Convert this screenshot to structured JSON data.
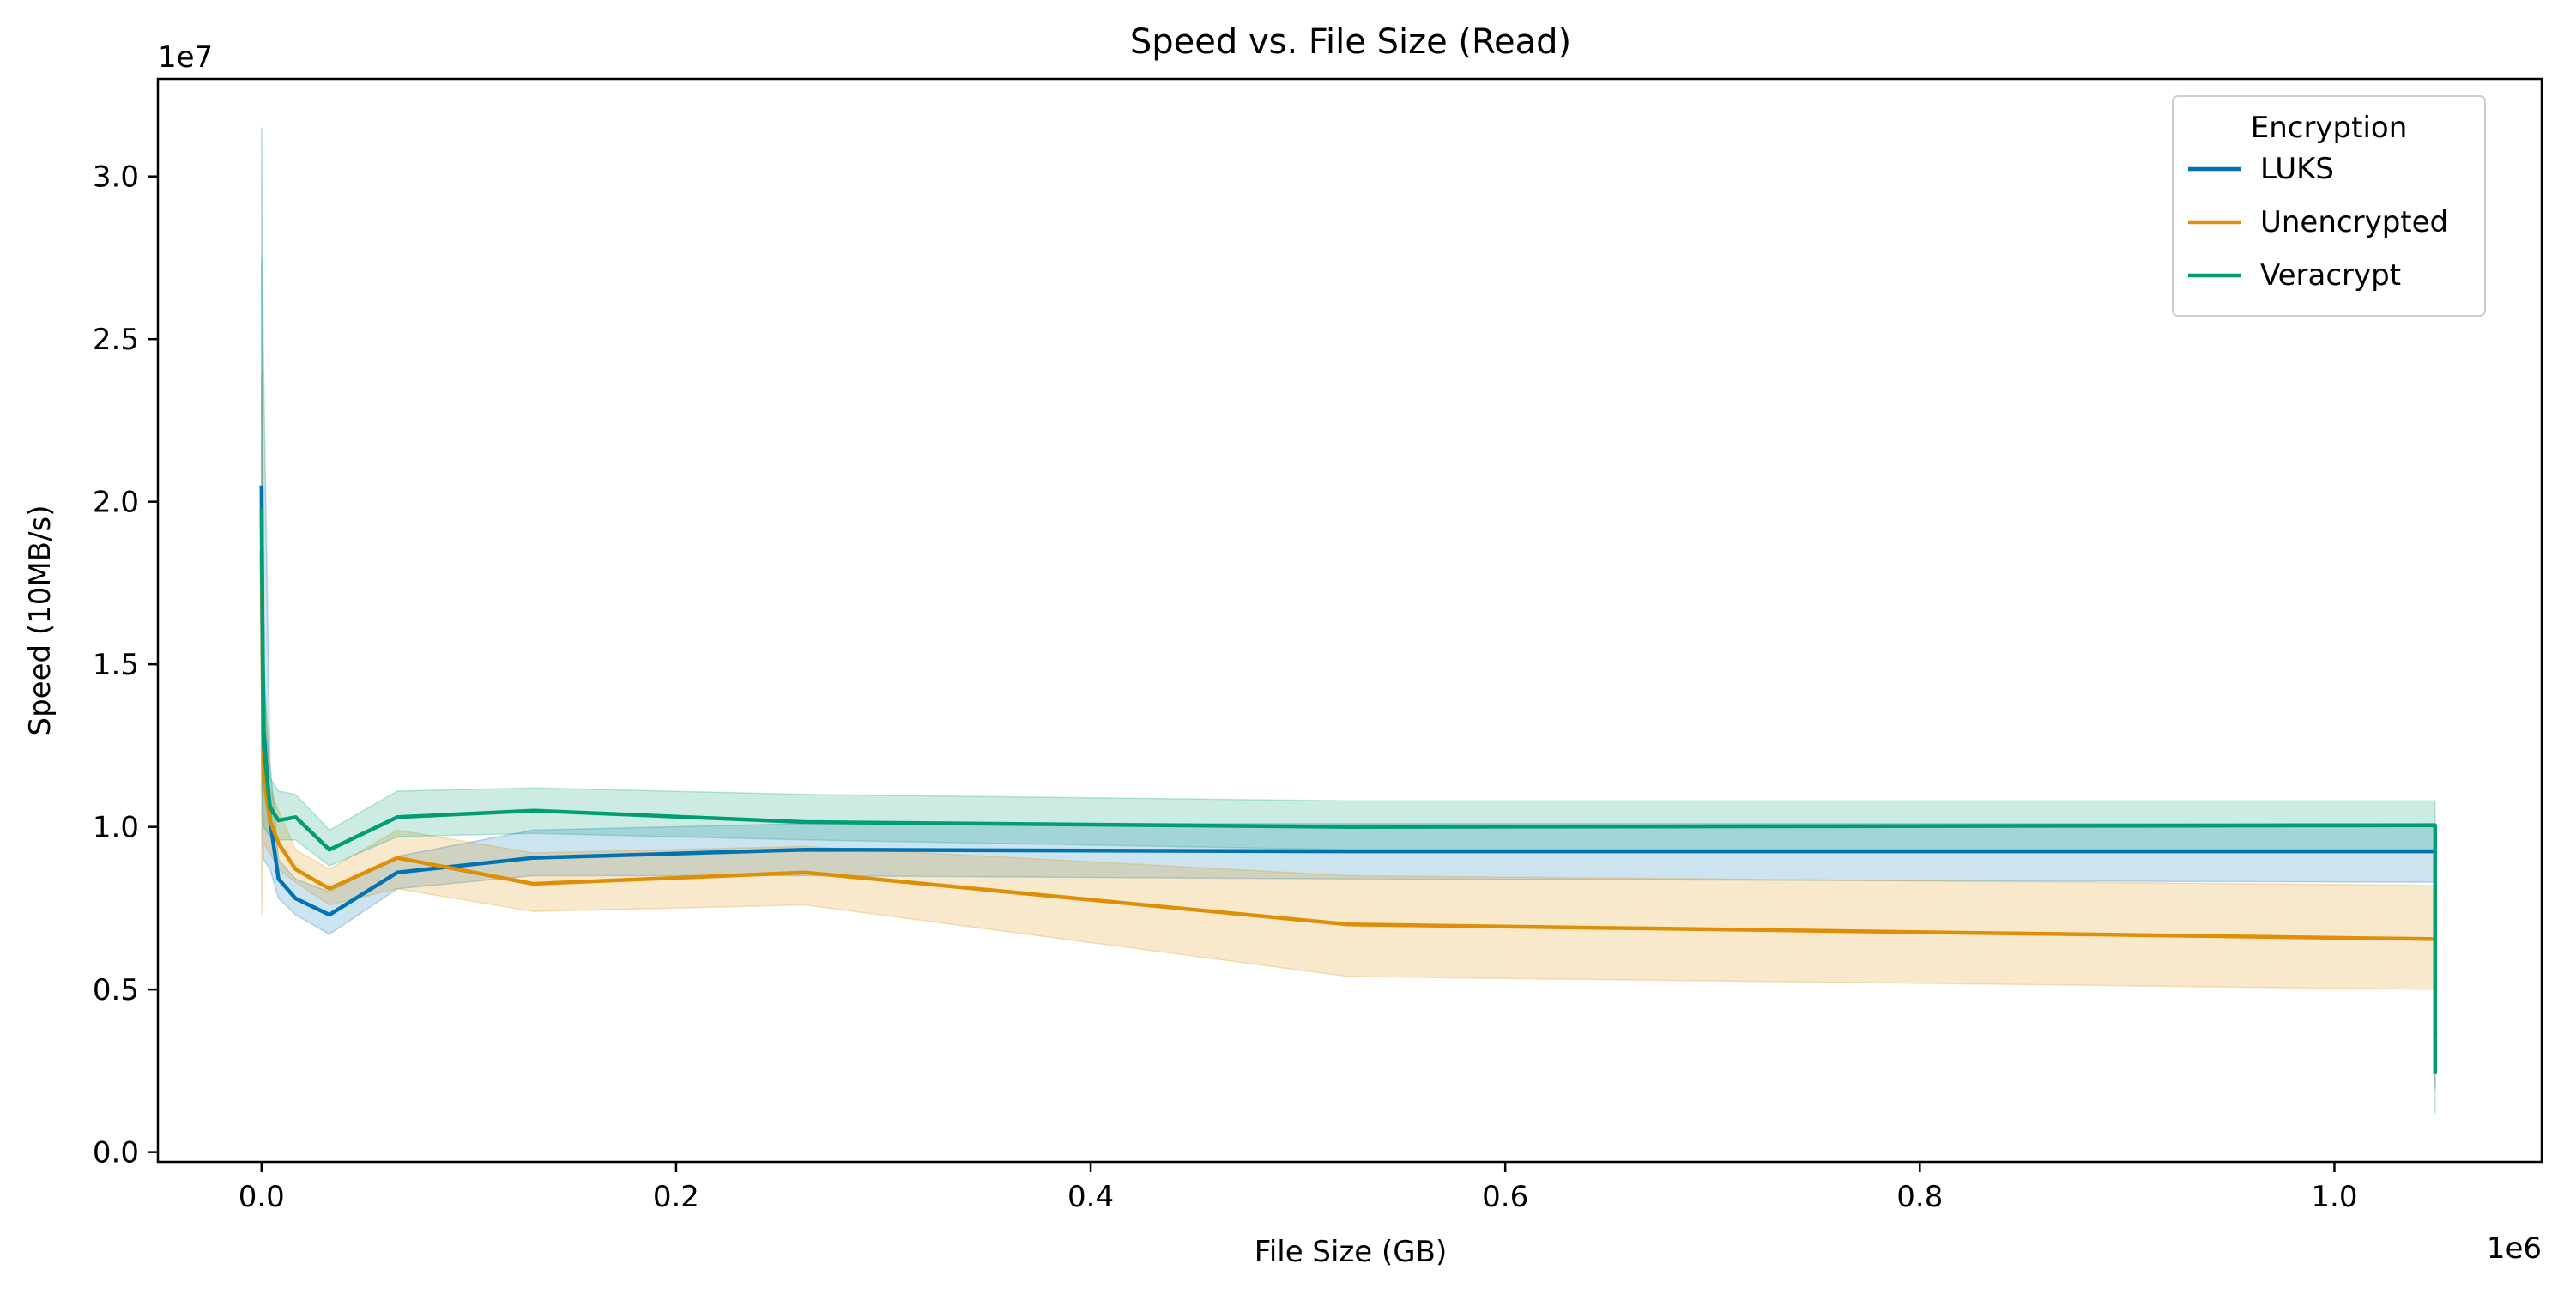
{
  "chart_data": {
    "type": "line",
    "title": "Speed vs. File Size (Read)",
    "xlabel": "File Size (GB)",
    "ylabel": "Speed (10MB/s)",
    "x_offset_label": "1e6",
    "y_offset_label": "1e7",
    "xlim": [
      -50000,
      1100000
    ],
    "ylim": [
      -300000,
      33000000
    ],
    "x_ticks": [
      0,
      200000,
      400000,
      600000,
      800000,
      1000000
    ],
    "x_tick_labels": [
      "0.0",
      "0.2",
      "0.4",
      "0.6",
      "0.8",
      "1.0"
    ],
    "y_ticks": [
      0,
      5000000,
      10000000,
      15000000,
      20000000,
      25000000,
      30000000
    ],
    "y_tick_labels": [
      "0.0",
      "0.5",
      "1.0",
      "1.5",
      "2.0",
      "2.5",
      "3.0"
    ],
    "grid": false,
    "legend": {
      "title": "Encryption",
      "position": "top-right"
    },
    "x": [
      1,
      1024,
      2048,
      4096,
      8192,
      16384,
      32768,
      65536,
      131072,
      262144,
      524288,
      1048576
    ],
    "series": [
      {
        "name": "LUKS",
        "color": "#0173b2",
        "values": [
          20500000,
          16000000,
          13000000,
          10200000,
          8400000,
          7800000,
          7300000,
          8600000,
          9050000,
          9300000,
          9250000,
          9250000,
          3600000
        ],
        "lower": [
          12000000,
          9500000,
          9000000,
          8700000,
          7800000,
          7300000,
          6700000,
          8100000,
          8500000,
          8500000,
          8400000,
          8300000,
          2000000
        ],
        "upper": [
          31500000,
          27500000,
          24000000,
          12000000,
          9000000,
          8400000,
          8000000,
          9100000,
          9900000,
          10100000,
          10100000,
          10100000,
          5500000
        ],
        "x": [
          0,
          512,
          1024,
          4096,
          8192,
          16384,
          32768,
          65536,
          131072,
          262144,
          524288,
          1048576,
          1048576
        ]
      },
      {
        "name": "Unencrypted",
        "color": "#de8f05",
        "values": [
          18500000,
          14500000,
          11500000,
          10200000,
          9500000,
          8700000,
          8100000,
          9050000,
          8250000,
          8600000,
          7000000,
          6550000,
          3550000
        ],
        "lower": [
          7300000,
          9000000,
          9500000,
          9200000,
          8700000,
          8300000,
          7600000,
          8100000,
          7400000,
          7600000,
          5400000,
          5000000,
          1900000
        ],
        "upper": [
          24000000,
          21000000,
          14500000,
          11200000,
          10500000,
          9300000,
          8700000,
          9900000,
          9200000,
          9400000,
          8500000,
          8200000,
          5300000
        ],
        "x": [
          0,
          512,
          1024,
          4096,
          8192,
          16384,
          32768,
          65536,
          131072,
          262144,
          524288,
          1048576,
          1048576
        ]
      },
      {
        "name": "Veracrypt",
        "color": "#029e73",
        "values": [
          19800000,
          15500000,
          12500000,
          10600000,
          10200000,
          10300000,
          9300000,
          10300000,
          10500000,
          10150000,
          10000000,
          10050000,
          2400000
        ],
        "lower": [
          13000000,
          10500000,
          10000000,
          9700000,
          9600000,
          9600000,
          8800000,
          9700000,
          9800000,
          9600000,
          9300000,
          9300000,
          1200000
        ],
        "upper": [
          27500000,
          24000000,
          15000000,
          11500000,
          11100000,
          11000000,
          9900000,
          11100000,
          11200000,
          11000000,
          10800000,
          10800000,
          3800000
        ],
        "x": [
          0,
          512,
          1024,
          4096,
          8192,
          16384,
          32768,
          65536,
          131072,
          262144,
          524288,
          1048576,
          1048576
        ]
      }
    ]
  }
}
